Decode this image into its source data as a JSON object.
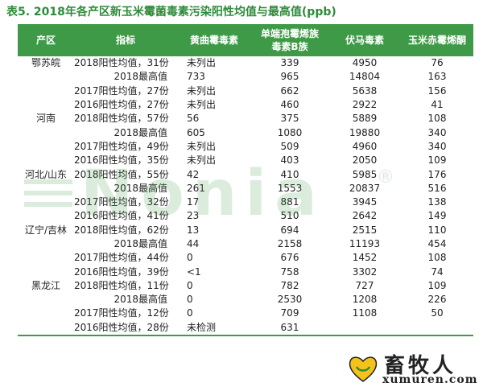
{
  "title": "表5. 2018年各产区新玉米霉菌毒素污染阳性均值与最高值(ppb)",
  "table": {
    "headers": {
      "region": "产区",
      "indicator": "指标",
      "aflatoxin": "黄曲霉毒素",
      "fumonisin_line1": "单端孢霉烯族",
      "fumonisin_line2": "毒素B族",
      "don": "伏马毒素",
      "zea": "玉米赤霉烯酮"
    },
    "rows": [
      {
        "region": "鄂苏皖",
        "indicator": "2018阳性均值，31份",
        "aflatoxin": "未列出",
        "trich": "339",
        "fumonisin": "4950",
        "zea": "76"
      },
      {
        "region": "",
        "indicator": "2018最高值",
        "aflatoxin": "733",
        "trich": "965",
        "fumonisin": "14804",
        "zea": "163"
      },
      {
        "region": "",
        "indicator": "2017阳性均值，27份",
        "aflatoxin": "未列出",
        "trich": "662",
        "fumonisin": "5638",
        "zea": "156"
      },
      {
        "region": "",
        "indicator": "2016阳性均值，27份",
        "aflatoxin": "未列出",
        "trich": "460",
        "fumonisin": "2922",
        "zea": "41"
      },
      {
        "region": "河南",
        "indicator": "2018阳性均值，57份",
        "aflatoxin": "56",
        "trich": "375",
        "fumonisin": "5889",
        "zea": "108"
      },
      {
        "region": "",
        "indicator": "2018最高值",
        "aflatoxin": "605",
        "trich": "1080",
        "fumonisin": "19880",
        "zea": "340"
      },
      {
        "region": "",
        "indicator": "2017阳性均值，49份",
        "aflatoxin": "未列出",
        "trich": "509",
        "fumonisin": "4960",
        "zea": "340"
      },
      {
        "region": "",
        "indicator": "2016阳性均值，35份",
        "aflatoxin": "未列出",
        "trich": "403",
        "fumonisin": "2050",
        "zea": "109"
      },
      {
        "region": "河北/山东",
        "indicator": "2018阳性均值，55份",
        "aflatoxin": "42",
        "trich": "410",
        "fumonisin": "5985",
        "zea": "176"
      },
      {
        "region": "",
        "indicator": "2018最高值",
        "aflatoxin": "261",
        "trich": "1553",
        "fumonisin": "20837",
        "zea": "516"
      },
      {
        "region": "",
        "indicator": "2017阳性均值，32份",
        "aflatoxin": "17",
        "trich": "881",
        "fumonisin": "3945",
        "zea": "138"
      },
      {
        "region": "",
        "indicator": "2016阳性均值，41份",
        "aflatoxin": "23",
        "trich": "510",
        "fumonisin": "2642",
        "zea": "149"
      },
      {
        "region": "辽宁/吉林",
        "indicator": "2018阳性均值，62份",
        "aflatoxin": "13",
        "trich": "694",
        "fumonisin": "2515",
        "zea": "110"
      },
      {
        "region": "",
        "indicator": "2018最高值",
        "aflatoxin": "44",
        "trich": "2158",
        "fumonisin": "11193",
        "zea": "454"
      },
      {
        "region": "",
        "indicator": "2017阳性均值，44份",
        "aflatoxin": "0",
        "trich": "676",
        "fumonisin": "1452",
        "zea": "108"
      },
      {
        "region": "",
        "indicator": "2016阳性均值，39份",
        "aflatoxin": "<1",
        "trich": "758",
        "fumonisin": "3302",
        "zea": "74"
      },
      {
        "region": "黑龙江",
        "indicator": "2018阳性均值，11份",
        "aflatoxin": "0",
        "trich": "782",
        "fumonisin": "727",
        "zea": "109"
      },
      {
        "region": "",
        "indicator": "2018最高值",
        "aflatoxin": "0",
        "trich": "2530",
        "fumonisin": "1208",
        "zea": "226"
      },
      {
        "region": "",
        "indicator": "2017阳性均值，12份",
        "aflatoxin": "0",
        "trich": "709",
        "fumonisin": "1108",
        "zea": "50"
      },
      {
        "region": "",
        "indicator": "2016阳性均值，28份",
        "aflatoxin": "未检测",
        "trich": "631",
        "fumonisin": "",
        "zea": ""
      }
    ]
  },
  "watermark": {
    "text": "Nonia",
    "mark": "®"
  },
  "logo": {
    "name": "畜牧人",
    "url": "xumuren.com"
  },
  "colors": {
    "accent_green": "#3f9a47",
    "title_green": "#2e8b3a"
  }
}
